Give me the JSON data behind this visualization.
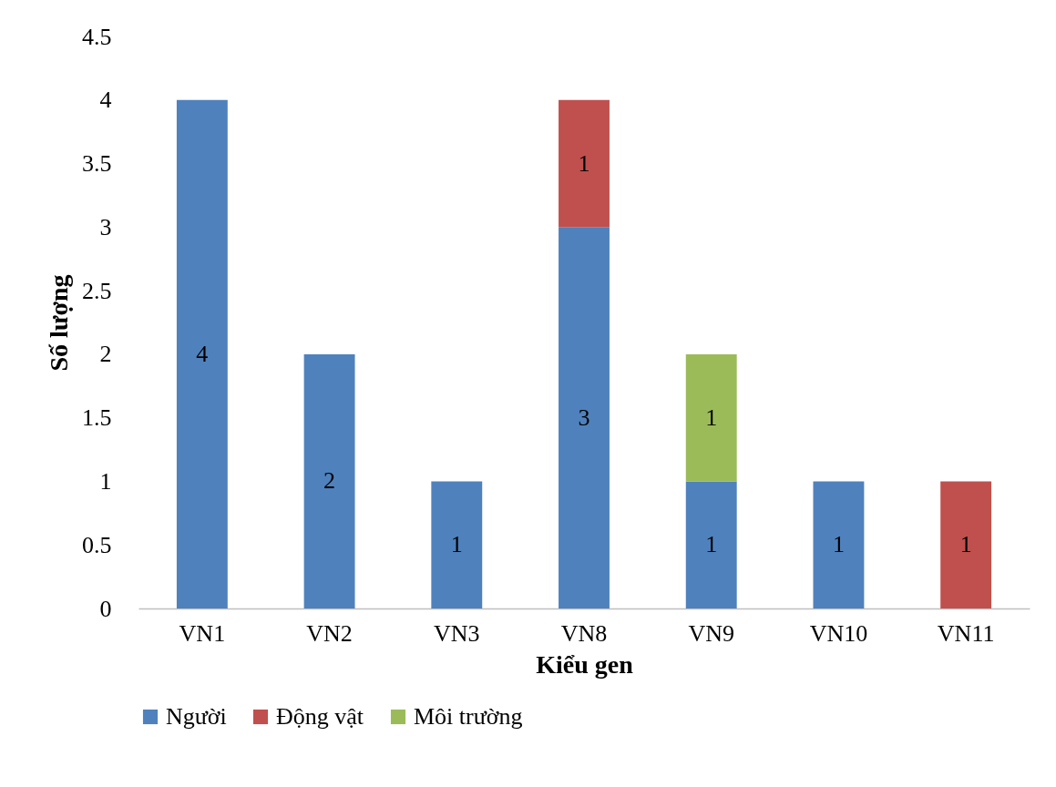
{
  "chart_data": {
    "type": "bar",
    "stacked": true,
    "xlabel": "Kiểu gen",
    "ylabel": "Số lượng",
    "categories": [
      "VN1",
      "VN2",
      "VN3",
      "VN8",
      "VN9",
      "VN10",
      "VN11"
    ],
    "series": [
      {
        "name": "Người",
        "color": "#4f81bd",
        "values": [
          4,
          2,
          1,
          3,
          1,
          1,
          null
        ]
      },
      {
        "name": "Động vật",
        "color": "#c0504d",
        "values": [
          null,
          null,
          null,
          1,
          null,
          null,
          1
        ]
      },
      {
        "name": "Môi trường",
        "color": "#9bbb59",
        "values": [
          null,
          null,
          null,
          null,
          1,
          null,
          null
        ]
      }
    ],
    "ylim": [
      0,
      4.5
    ],
    "yticks": [
      0,
      0.5,
      1,
      1.5,
      2,
      2.5,
      3,
      3.5,
      4,
      4.5
    ],
    "grid": false,
    "legend": "bottom",
    "data_labels": true
  }
}
